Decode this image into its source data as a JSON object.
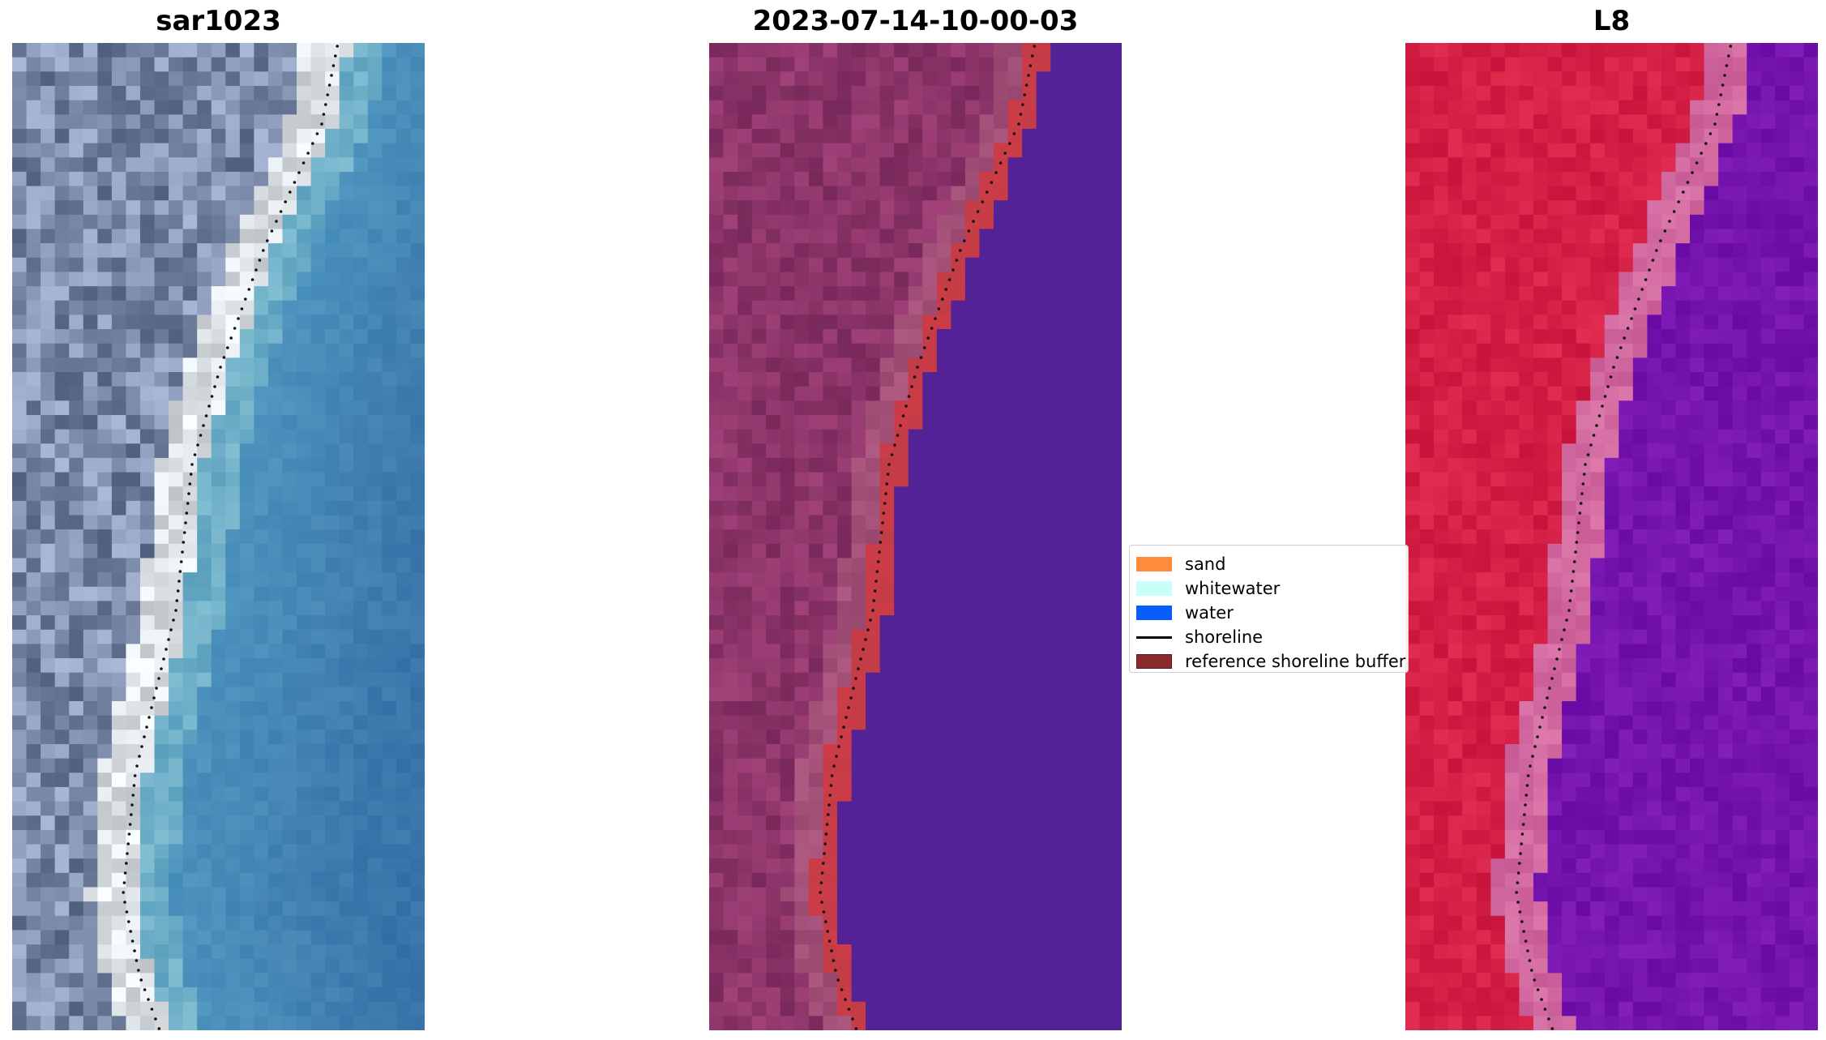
{
  "panels": [
    {
      "id": "left",
      "title": "sar1023",
      "image": "rgb-satellite-coastline"
    },
    {
      "id": "mid",
      "title": "2023-07-14-10-00-03",
      "image": "classified-coastline"
    },
    {
      "id": "right",
      "title": "L8",
      "image": "false-color-coastline"
    }
  ],
  "legend": {
    "items": [
      {
        "label": "sand",
        "color": "#ff8c3c",
        "kind": "patch"
      },
      {
        "label": "whitewater",
        "color": "#c8fff9",
        "kind": "patch"
      },
      {
        "label": "water",
        "color": "#0a5cff",
        "kind": "patch"
      },
      {
        "label": "shoreline",
        "color": "#000000",
        "kind": "line"
      },
      {
        "label": "reference shoreline buffer",
        "color": "#8b2a2a",
        "kind": "patch"
      }
    ]
  }
}
